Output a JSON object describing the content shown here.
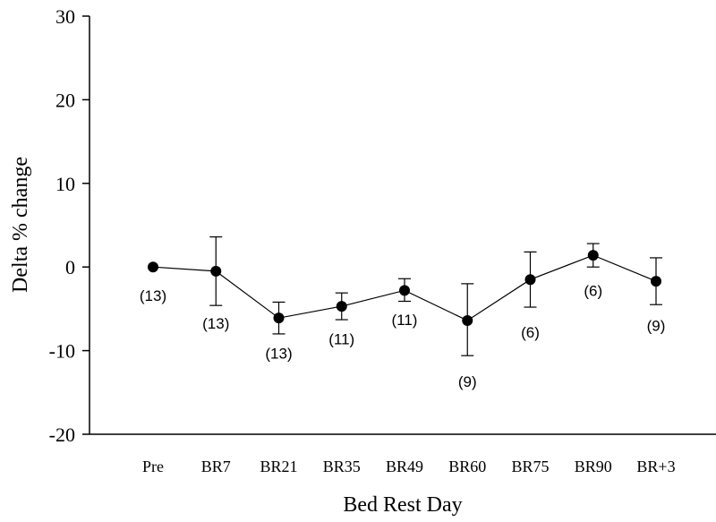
{
  "chart_data": {
    "type": "line",
    "title": "",
    "xlabel": "Bed Rest Day",
    "ylabel": "Delta % change",
    "ylim": [
      -20,
      30
    ],
    "yticks": [
      -20,
      -10,
      0,
      10,
      20,
      30
    ],
    "ytick_labels": [
      "-20",
      "-10",
      "0",
      "10",
      "20",
      "30"
    ],
    "categories": [
      "Pre",
      "BR7",
      "BR21",
      "BR35",
      "BR49",
      "BR60",
      "BR75",
      "BR90",
      "BR+3"
    ],
    "series": [
      {
        "values": [
          0,
          -0.5,
          -6.1,
          -4.7,
          -2.8,
          -6.4,
          -1.5,
          1.4,
          -1.7
        ],
        "err_upper": [
          0,
          3.6,
          -4.2,
          -3.1,
          -1.4,
          -2.0,
          1.8,
          2.8,
          1.1
        ],
        "err_lower": [
          0,
          -4.6,
          -8.0,
          -6.3,
          -4.1,
          -10.6,
          -4.8,
          0.0,
          -4.5
        ],
        "n_labels": [
          "(13)",
          "(13)",
          "(13)",
          "(11)",
          "(11)",
          "(9)",
          "(6)",
          "(6)",
          "(9)"
        ],
        "n_label_values": [
          -3.4,
          -6.7,
          -10.3,
          -8.6,
          -6.3,
          -13.7,
          -7.8,
          -2.8,
          -7.0
        ]
      }
    ],
    "grid": false,
    "legend": "none",
    "color": "#000000"
  }
}
